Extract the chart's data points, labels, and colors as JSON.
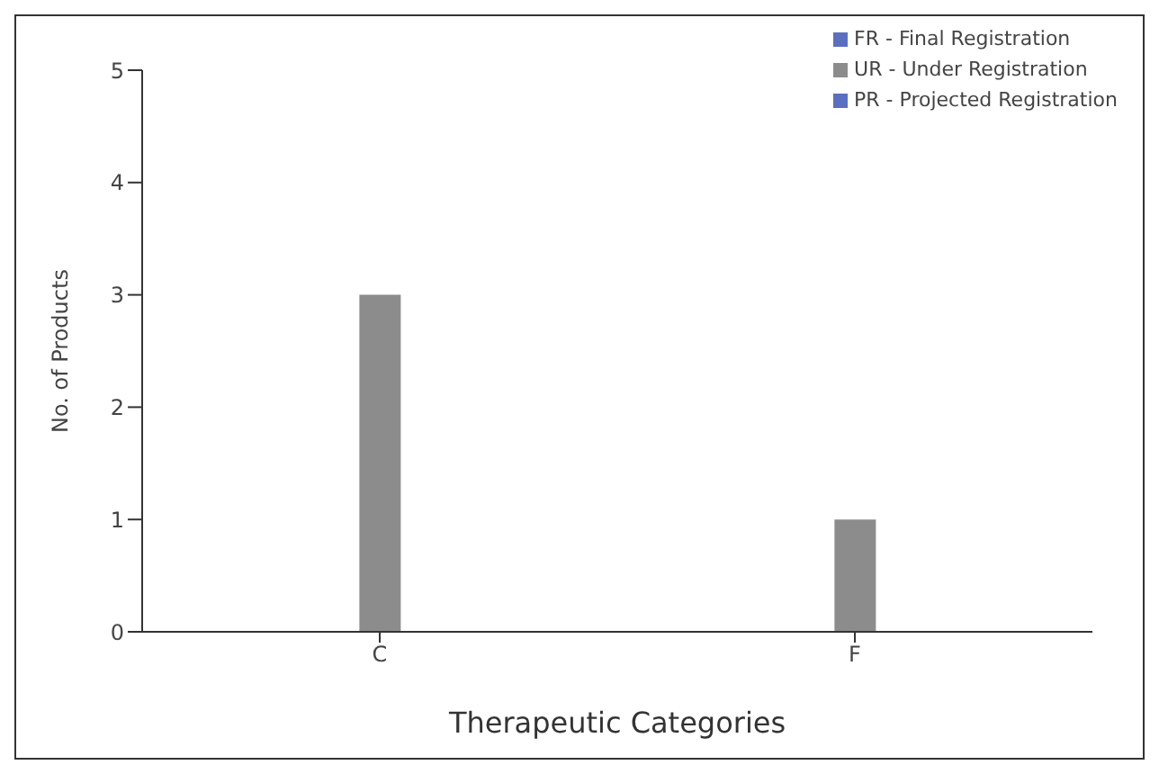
{
  "chart_data": {
    "type": "bar",
    "xlabel": "Therapeutic Categories",
    "ylabel": "No. of Products",
    "categories": [
      "C",
      "F"
    ],
    "series": [
      {
        "name": "FR - Final Registration",
        "color": "#5a6fc0",
        "values": [
          0,
          0
        ]
      },
      {
        "name": "UR - Under Registration",
        "color": "#8c8c8c",
        "values": [
          3,
          1
        ]
      },
      {
        "name": "PR - Projected Registration",
        "color": "#5a6fc0",
        "values": [
          0,
          0
        ]
      }
    ],
    "ylim": [
      0,
      5
    ],
    "yticks": [
      0,
      1,
      2,
      3,
      4,
      5
    ],
    "legend": "top right"
  }
}
